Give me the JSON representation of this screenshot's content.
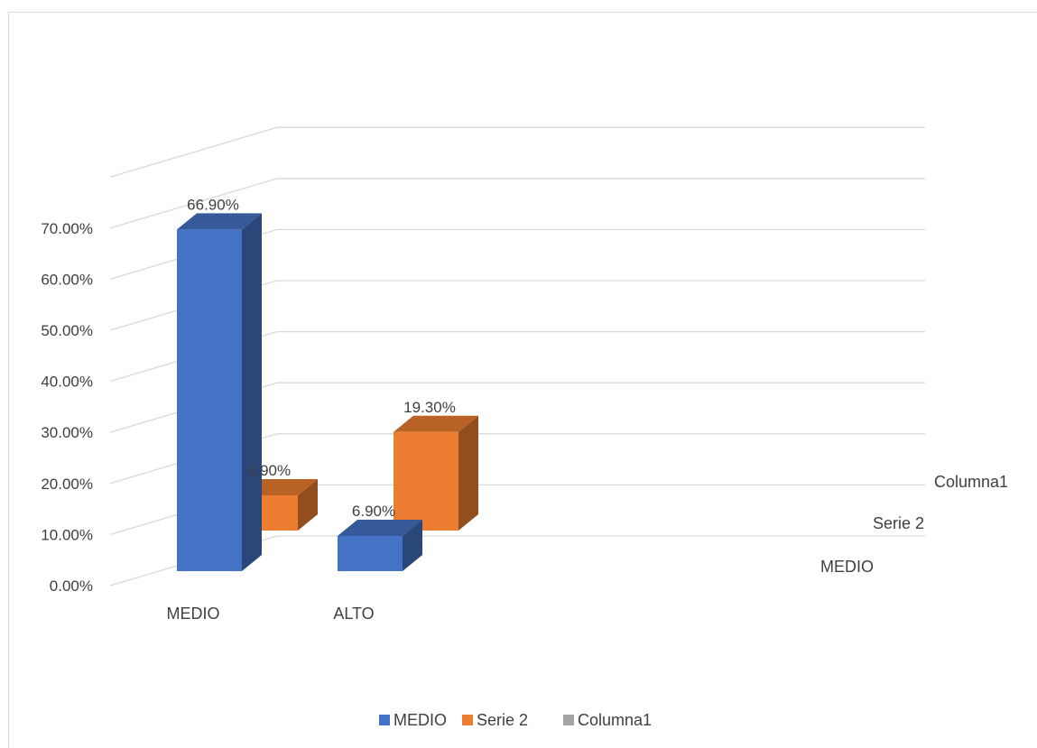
{
  "chart_data": {
    "type": "bar",
    "categories": [
      "MEDIO",
      "ALTO"
    ],
    "series": [
      {
        "name": "MEDIO",
        "values": [
          66.9,
          6.9
        ],
        "color": "#4472C4"
      },
      {
        "name": "Serie 2",
        "values": [
          6.9,
          19.3
        ],
        "color": "#ED7D31"
      },
      {
        "name": "Columna1",
        "values": [
          null,
          null
        ],
        "color": "#A5A5A5"
      }
    ],
    "data_labels": [
      [
        "66.90%",
        "6.90%"
      ],
      [
        "6.90%",
        "19.30%"
      ]
    ],
    "y_ticks": [
      "0.00%",
      "10.00%",
      "20.00%",
      "30.00%",
      "40.00%",
      "50.00%",
      "60.00%",
      "70.00%"
    ],
    "ylim": [
      0,
      70
    ],
    "depth_axis_labels": [
      "MEDIO",
      "Serie 2",
      "Columna1"
    ],
    "legend": {
      "position": "bottom",
      "entries": [
        "MEDIO",
        "Serie 2",
        "Columna1"
      ]
    },
    "grid": true,
    "style": "3d-column"
  }
}
